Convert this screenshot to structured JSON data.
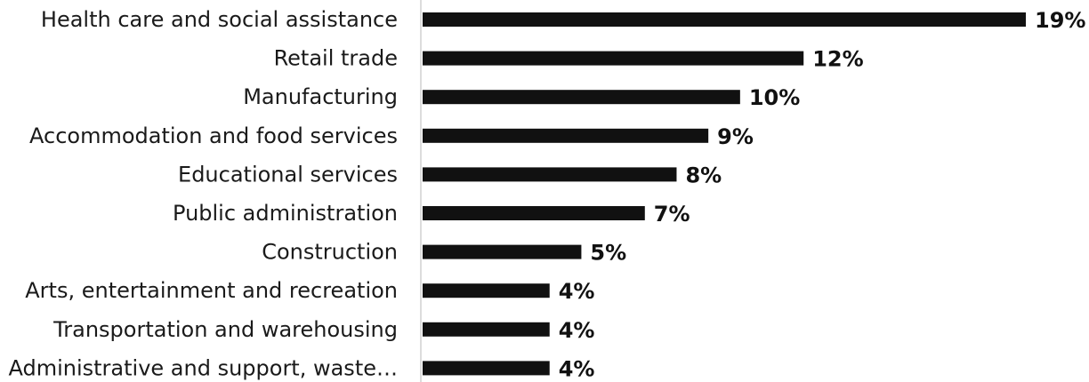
{
  "chart_data": {
    "type": "bar",
    "orientation": "horizontal",
    "categories": [
      "Health care and social assistance",
      "Retail trade",
      "Manufacturing",
      "Accommodation and food services",
      "Educational services",
      "Public administration",
      "Construction",
      "Arts, entertainment and recreation",
      "Transportation and warehousing",
      "Administrative and support, waste…"
    ],
    "values": [
      19,
      12,
      10,
      9,
      8,
      7,
      5,
      4,
      4,
      4
    ],
    "value_labels": [
      "19%",
      "12%",
      "10%",
      "9%",
      "8%",
      "7%",
      "5%",
      "4%",
      "4%",
      "4%"
    ],
    "unit": "%",
    "title": "",
    "xlabel": "",
    "ylabel": "",
    "grid": false,
    "legend": "none",
    "bar_color": "#111111",
    "axis_color": "#d0d0d0"
  }
}
